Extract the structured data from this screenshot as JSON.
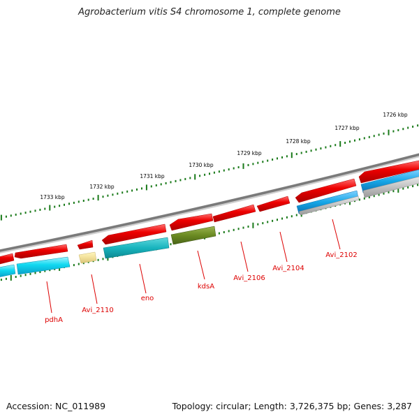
{
  "title": "Agrobacterium vitis S4 chromosome 1, complete genome",
  "accession_text": "Accession: NC_011989",
  "topology_text": "Topology: circular; Length: 3,726,375 bp; Genes: 3,287",
  "colors": {
    "backbone": "#808080",
    "forward_gene": "#ee0000",
    "reverse_gene": "#00ccee",
    "tick": "#1a7a1a",
    "label": "#dd0000"
  },
  "scale_labels": [
    "1733 kbp",
    "1732 kbp",
    "1731 kbp",
    "1730 kbp",
    "1729 kbp",
    "1728 kbp",
    "1727 kbp",
    "1726 kbp"
  ],
  "gene_labels": [
    "pdhA",
    "Avi_2110",
    "eno",
    "kdsA",
    "Avi_2106",
    "Avi_2104",
    "Avi_2102"
  ]
}
